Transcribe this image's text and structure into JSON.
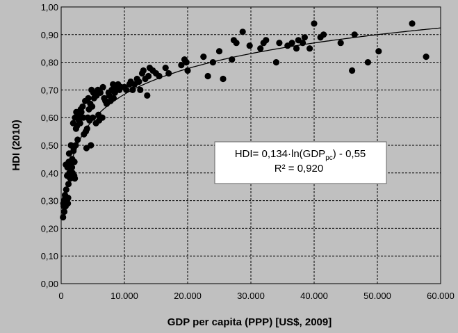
{
  "chart_data": {
    "type": "scatter",
    "xlabel": "GDP per capita (PPP) [US$, 2009]",
    "ylabel": "HDI (2010)",
    "xlim": [
      0,
      60000
    ],
    "ylim": [
      0,
      1
    ],
    "x_ticks": [
      0,
      10000,
      20000,
      30000,
      40000,
      50000,
      60000
    ],
    "x_tick_labels": [
      "0",
      "10.000",
      "20.000",
      "30.000",
      "40.000",
      "50.000",
      "60.000"
    ],
    "y_ticks": [
      0,
      0.1,
      0.2,
      0.3,
      0.4,
      0.5,
      0.6,
      0.7,
      0.8,
      0.9,
      1.0
    ],
    "y_tick_labels": [
      "0,00",
      "0,10",
      "0,20",
      "0,30",
      "0,40",
      "0,50",
      "0,60",
      "0,70",
      "0,80",
      "0,90",
      "1,00"
    ],
    "grid": true,
    "marker_color": "#000000",
    "background_color": "#c0c0c0",
    "trendline": {
      "type": "logarithmic",
      "a": 0.134,
      "b": -0.55,
      "x_from": 1000,
      "x_to": 60000
    },
    "equation_label": {
      "lhs": "HDI= 0,134·ln(GDP",
      "sub": "pc",
      "rhs": ") - 0,55",
      "r2": "R² = 0,920"
    },
    "points": [
      [
        300,
        0.24
      ],
      [
        350,
        0.29
      ],
      [
        400,
        0.28
      ],
      [
        450,
        0.3
      ],
      [
        500,
        0.26
      ],
      [
        600,
        0.32
      ],
      [
        650,
        0.31
      ],
      [
        700,
        0.28
      ],
      [
        750,
        0.43
      ],
      [
        800,
        0.34
      ],
      [
        850,
        0.3
      ],
      [
        900,
        0.29
      ],
      [
        950,
        0.39
      ],
      [
        1000,
        0.42
      ],
      [
        1050,
        0.29
      ],
      [
        1100,
        0.31
      ],
      [
        1150,
        0.36
      ],
      [
        1200,
        0.44
      ],
      [
        1250,
        0.47
      ],
      [
        1300,
        0.4
      ],
      [
        1400,
        0.43
      ],
      [
        1450,
        0.38
      ],
      [
        1500,
        0.41
      ],
      [
        1550,
        0.5
      ],
      [
        1600,
        0.44
      ],
      [
        1700,
        0.42
      ],
      [
        1750,
        0.45
      ],
      [
        1800,
        0.4
      ],
      [
        1850,
        0.39
      ],
      [
        1900,
        0.58
      ],
      [
        1950,
        0.48
      ],
      [
        2000,
        0.49
      ],
      [
        2050,
        0.39
      ],
      [
        2100,
        0.44
      ],
      [
        2150,
        0.38
      ],
      [
        2200,
        0.6
      ],
      [
        2300,
        0.5
      ],
      [
        2350,
        0.56
      ],
      [
        2400,
        0.62
      ],
      [
        2500,
        0.57
      ],
      [
        2600,
        0.52
      ],
      [
        2700,
        0.61
      ],
      [
        2800,
        0.59
      ],
      [
        3000,
        0.58
      ],
      [
        3100,
        0.63
      ],
      [
        3200,
        0.62
      ],
      [
        3400,
        0.64
      ],
      [
        3500,
        0.6
      ],
      [
        3600,
        0.54
      ],
      [
        3800,
        0.66
      ],
      [
        3900,
        0.55
      ],
      [
        4000,
        0.49
      ],
      [
        4100,
        0.56
      ],
      [
        4200,
        0.6
      ],
      [
        4300,
        0.67
      ],
      [
        4400,
        0.63
      ],
      [
        4500,
        0.59
      ],
      [
        4600,
        0.65
      ],
      [
        4700,
        0.5
      ],
      [
        4800,
        0.7
      ],
      [
        4900,
        0.64
      ],
      [
        5000,
        0.6
      ],
      [
        5100,
        0.69
      ],
      [
        5200,
        0.67
      ],
      [
        5500,
        0.58
      ],
      [
        5600,
        0.68
      ],
      [
        5800,
        0.7
      ],
      [
        5900,
        0.61
      ],
      [
        6000,
        0.59
      ],
      [
        6200,
        0.69
      ],
      [
        6500,
        0.6
      ],
      [
        6600,
        0.71
      ],
      [
        6800,
        0.67
      ],
      [
        7000,
        0.66
      ],
      [
        7200,
        0.65
      ],
      [
        7500,
        0.69
      ],
      [
        7600,
        0.68
      ],
      [
        7800,
        0.66
      ],
      [
        8000,
        0.7
      ],
      [
        8200,
        0.72
      ],
      [
        8300,
        0.67
      ],
      [
        8500,
        0.69
      ],
      [
        8600,
        0.71
      ],
      [
        8800,
        0.7
      ],
      [
        9000,
        0.72
      ],
      [
        9200,
        0.7
      ],
      [
        9500,
        0.71
      ],
      [
        10000,
        0.71
      ],
      [
        10300,
        0.7
      ],
      [
        10800,
        0.72
      ],
      [
        11000,
        0.73
      ],
      [
        11300,
        0.7
      ],
      [
        11600,
        0.72
      ],
      [
        12000,
        0.74
      ],
      [
        12300,
        0.73
      ],
      [
        12500,
        0.7
      ],
      [
        12800,
        0.76
      ],
      [
        13000,
        0.77
      ],
      [
        13300,
        0.74
      ],
      [
        13600,
        0.68
      ],
      [
        13800,
        0.75
      ],
      [
        14000,
        0.78
      ],
      [
        14500,
        0.77
      ],
      [
        15000,
        0.76
      ],
      [
        15500,
        0.75
      ],
      [
        16500,
        0.78
      ],
      [
        17000,
        0.76
      ],
      [
        19000,
        0.79
      ],
      [
        19500,
        0.81
      ],
      [
        19800,
        0.8
      ],
      [
        20000,
        0.77
      ],
      [
        22500,
        0.82
      ],
      [
        23200,
        0.75
      ],
      [
        24000,
        0.8
      ],
      [
        25000,
        0.84
      ],
      [
        25600,
        0.74
      ],
      [
        27000,
        0.81
      ],
      [
        27300,
        0.88
      ],
      [
        27700,
        0.87
      ],
      [
        28700,
        0.91
      ],
      [
        29800,
        0.86
      ],
      [
        31500,
        0.85
      ],
      [
        32000,
        0.87
      ],
      [
        32400,
        0.88
      ],
      [
        34000,
        0.8
      ],
      [
        34500,
        0.87
      ],
      [
        35800,
        0.86
      ],
      [
        36500,
        0.87
      ],
      [
        37200,
        0.85
      ],
      [
        37500,
        0.88
      ],
      [
        38200,
        0.87
      ],
      [
        38500,
        0.89
      ],
      [
        39300,
        0.85
      ],
      [
        40000,
        0.94
      ],
      [
        41000,
        0.89
      ],
      [
        41500,
        0.9
      ],
      [
        44200,
        0.87
      ],
      [
        46000,
        0.77
      ],
      [
        46400,
        0.9
      ],
      [
        48500,
        0.8
      ],
      [
        50200,
        0.84
      ],
      [
        55500,
        0.94
      ],
      [
        57700,
        0.82
      ]
    ]
  }
}
